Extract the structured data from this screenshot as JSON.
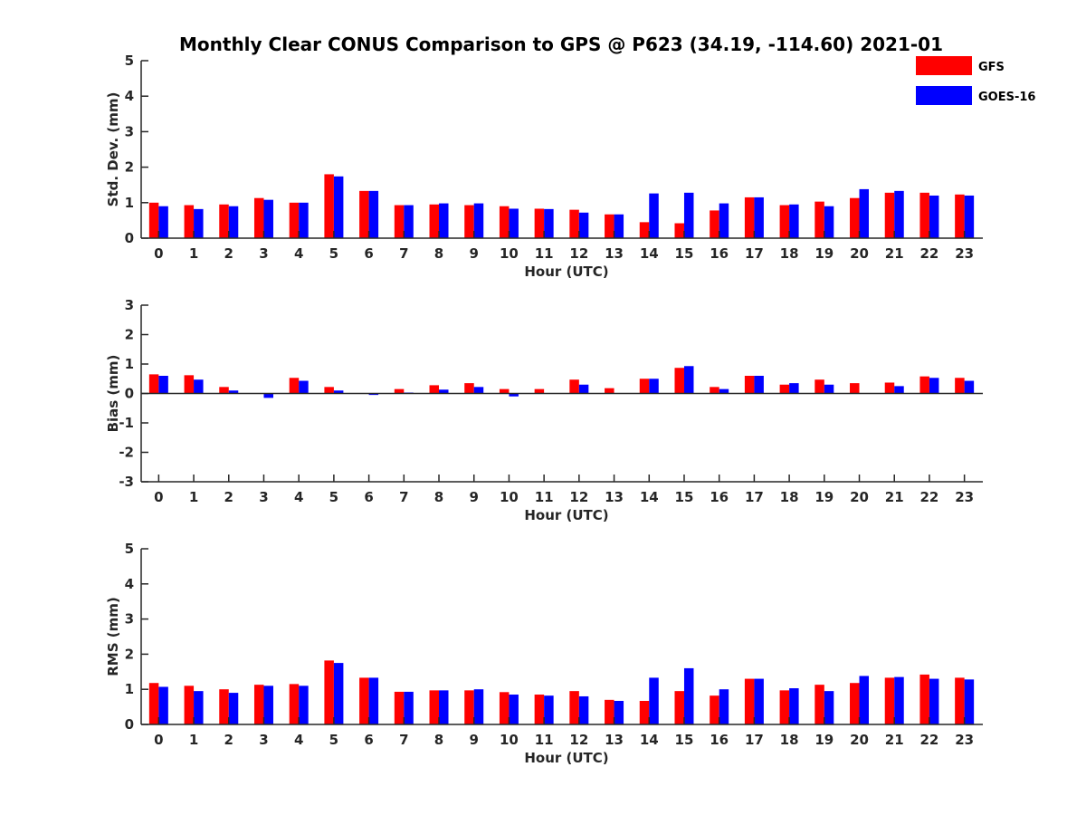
{
  "chart_data": {
    "type": "bar",
    "title": "Monthly Clear CONUS Comparison to GPS @ P623 (34.19, -114.60) 2021-01",
    "legend": {
      "placement": "top-right",
      "entries": [
        {
          "name": "GFS",
          "color": "#ff0000"
        },
        {
          "name": "GOES-16",
          "color": "#0000ff"
        }
      ]
    },
    "categories": [
      "0",
      "1",
      "2",
      "3",
      "4",
      "5",
      "6",
      "7",
      "8",
      "9",
      "10",
      "11",
      "12",
      "13",
      "14",
      "15",
      "16",
      "17",
      "18",
      "19",
      "20",
      "21",
      "22",
      "23"
    ],
    "panels": [
      {
        "ylabel": "Std. Dev. (mm)",
        "xlabel": "Hour (UTC)",
        "ylim": [
          0,
          5
        ],
        "yticks": [
          0,
          1,
          2,
          3,
          4,
          5
        ],
        "series": [
          {
            "name": "GFS",
            "values": [
              1.0,
              0.93,
              0.95,
              1.13,
              1.0,
              1.8,
              1.33,
              0.93,
              0.95,
              0.93,
              0.9,
              0.83,
              0.8,
              0.67,
              0.45,
              0.42,
              0.78,
              1.15,
              0.93,
              1.03,
              1.13,
              1.28,
              1.28,
              1.23
            ]
          },
          {
            "name": "GOES-16",
            "values": [
              0.9,
              0.82,
              0.9,
              1.08,
              1.0,
              1.74,
              1.33,
              0.93,
              0.98,
              0.98,
              0.83,
              0.82,
              0.72,
              0.67,
              1.26,
              1.28,
              0.98,
              1.15,
              0.95,
              0.9,
              1.38,
              1.33,
              1.2,
              1.2
            ]
          }
        ]
      },
      {
        "ylabel": "Bias (mm)",
        "xlabel": "Hour (UTC)",
        "ylim": [
          -3,
          3
        ],
        "yticks": [
          -3,
          -2,
          -1,
          0,
          1,
          2,
          3
        ],
        "series": [
          {
            "name": "GFS",
            "values": [
              0.65,
              0.62,
              0.22,
              0.0,
              0.53,
              0.22,
              0.0,
              0.15,
              0.28,
              0.35,
              0.15,
              0.15,
              0.47,
              0.18,
              0.5,
              0.87,
              0.22,
              0.6,
              0.3,
              0.47,
              0.35,
              0.37,
              0.58,
              0.53
            ]
          },
          {
            "name": "GOES-16",
            "values": [
              0.6,
              0.47,
              0.1,
              -0.15,
              0.43,
              0.1,
              -0.05,
              0.03,
              0.13,
              0.22,
              -0.1,
              0.0,
              0.3,
              0.0,
              0.5,
              0.93,
              0.15,
              0.6,
              0.35,
              0.3,
              0.0,
              0.25,
              0.53,
              0.43
            ]
          }
        ]
      },
      {
        "ylabel": "RMS (mm)",
        "xlabel": "Hour (UTC)",
        "ylim": [
          0,
          5
        ],
        "yticks": [
          0,
          1,
          2,
          3,
          4,
          5
        ],
        "series": [
          {
            "name": "GFS",
            "values": [
              1.18,
              1.1,
              1.0,
              1.13,
              1.15,
              1.82,
              1.33,
              0.93,
              0.97,
              0.97,
              0.92,
              0.85,
              0.95,
              0.7,
              0.67,
              0.95,
              0.82,
              1.3,
              0.97,
              1.13,
              1.18,
              1.33,
              1.42,
              1.33
            ]
          },
          {
            "name": "GOES-16",
            "values": [
              1.07,
              0.95,
              0.9,
              1.1,
              1.1,
              1.75,
              1.33,
              0.93,
              0.97,
              1.0,
              0.85,
              0.82,
              0.8,
              0.67,
              1.33,
              1.6,
              1.0,
              1.3,
              1.03,
              0.95,
              1.38,
              1.35,
              1.3,
              1.28
            ]
          }
        ]
      }
    ]
  }
}
